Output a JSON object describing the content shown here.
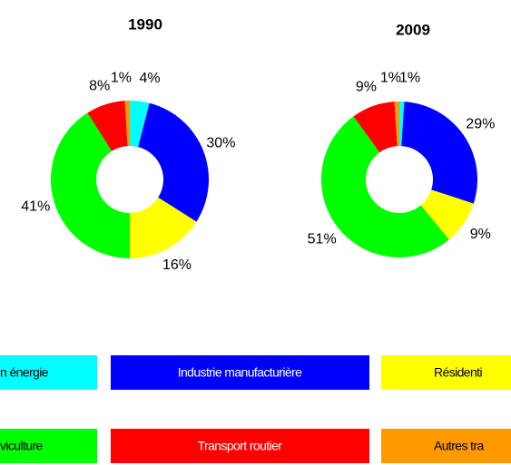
{
  "chart_data": [
    {
      "type": "donut",
      "title": "1990",
      "categories": [
        "n énergie",
        "Industrie manufacturière",
        "Résidenti",
        "viculture",
        "Transport routier",
        "Autres tra"
      ],
      "values": [
        4,
        30,
        16,
        41,
        8,
        1
      ],
      "value_labels": [
        "4%",
        "30%",
        "16%",
        "41%",
        "8%",
        "1%"
      ],
      "colors": [
        "#00ffff",
        "#0000ff",
        "#ffff00",
        "#00ff00",
        "#ff0000",
        "#ff9900"
      ]
    },
    {
      "type": "donut",
      "title": "2009",
      "categories": [
        "n énergie",
        "Industrie manufacturière",
        "Résidenti",
        "viculture",
        "Transport routier",
        "Autres tra"
      ],
      "values": [
        1,
        29,
        9,
        51,
        9,
        1
      ],
      "value_labels": [
        "1%",
        "29%",
        "9%",
        "51%",
        "9%",
        "1%"
      ],
      "colors": [
        "#00ffff",
        "#0000ff",
        "#ffff00",
        "#00ff00",
        "#ff0000",
        "#ff9900"
      ]
    }
  ]
}
